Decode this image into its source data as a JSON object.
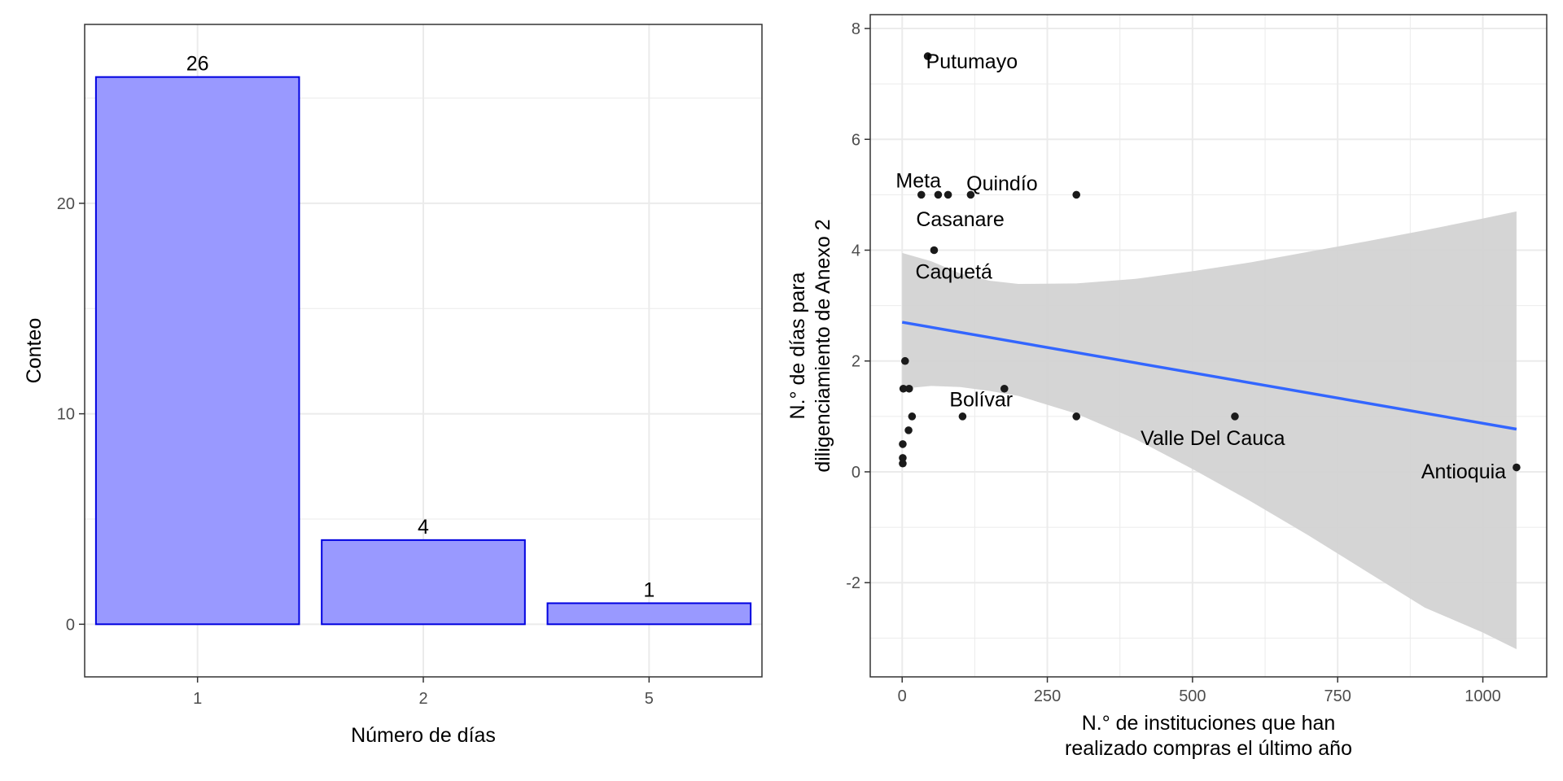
{
  "colors": {
    "bar_fill": "#9999ff",
    "bar_stroke": "#0000e0",
    "grid": "#ebebeb",
    "panel_border": "#333333",
    "point": "#1a1a1a",
    "trend_line": "#3366ff",
    "ribbon": "#d3d3d3"
  },
  "chart_data": [
    {
      "type": "bar",
      "title": "",
      "xlabel": "Número de días",
      "ylabel": "Conteo",
      "categories": [
        "1",
        "2",
        "5"
      ],
      "values": [
        26,
        4,
        1
      ],
      "data_labels": [
        "26",
        "4",
        "1"
      ],
      "ylim": [
        -2.5,
        28.5
      ],
      "yticks": [
        0,
        10,
        20
      ],
      "ytick_labels": [
        "0",
        "10",
        "20"
      ],
      "grid": true
    },
    {
      "type": "scatter",
      "title": "",
      "xlabel_lines": [
        "N.° de instituciones que han",
        "realizado compras el último año"
      ],
      "ylabel_lines": [
        "N.° de días para",
        "diligenciamiento de Anexo 2"
      ],
      "xlim": [
        -55,
        1110
      ],
      "ylim": [
        -3.7,
        8.25
      ],
      "xticks": [
        0,
        250,
        500,
        750,
        1000
      ],
      "xtick_labels": [
        "0",
        "250",
        "500",
        "750",
        "1000"
      ],
      "yticks": [
        -2,
        0,
        2,
        4,
        6,
        8
      ],
      "ytick_labels": [
        "-2",
        "0",
        "2",
        "4",
        "6",
        "8"
      ],
      "grid": true,
      "points": [
        {
          "x": 44,
          "y": 7.5
        },
        {
          "x": 33,
          "y": 5
        },
        {
          "x": 62,
          "y": 5
        },
        {
          "x": 79,
          "y": 5
        },
        {
          "x": 118,
          "y": 5
        },
        {
          "x": 300,
          "y": 5
        },
        {
          "x": 55,
          "y": 4
        },
        {
          "x": 5,
          "y": 2
        },
        {
          "x": 2,
          "y": 1.5
        },
        {
          "x": 12,
          "y": 1.5
        },
        {
          "x": 176,
          "y": 1.5
        },
        {
          "x": 17,
          "y": 1
        },
        {
          "x": 104,
          "y": 1
        },
        {
          "x": 300,
          "y": 1
        },
        {
          "x": 573,
          "y": 1
        },
        {
          "x": 11,
          "y": 0.75
        },
        {
          "x": 1,
          "y": 0.5
        },
        {
          "x": 1,
          "y": 0.25
        },
        {
          "x": 1,
          "y": 0.15
        },
        {
          "x": 1058,
          "y": 0.08
        }
      ],
      "annotations": [
        {
          "text": "Putumayo",
          "x": 120,
          "y": 7.4,
          "anchor": "middle"
        },
        {
          "text": "Meta",
          "x": 28,
          "y": 5.25,
          "anchor": "middle"
        },
        {
          "text": "Quindío",
          "x": 172,
          "y": 5.2,
          "anchor": "middle"
        },
        {
          "text": "Casanare",
          "x": 100,
          "y": 4.55,
          "anchor": "middle"
        },
        {
          "text": "Caquetá",
          "x": 89,
          "y": 3.6,
          "anchor": "middle"
        },
        {
          "text": "Bolívar",
          "x": 136,
          "y": 1.3,
          "anchor": "middle"
        },
        {
          "text": "Valle Del Cauca",
          "x": 535,
          "y": 0.6,
          "anchor": "middle"
        },
        {
          "text": "Antioquia",
          "x": 1040,
          "y": 0.0,
          "anchor": "end"
        }
      ],
      "trend": {
        "x": [
          0,
          1058
        ],
        "y": [
          2.7,
          0.77
        ]
      },
      "confidence_band": {
        "x": [
          0,
          50,
          100,
          150,
          200,
          300,
          400,
          500,
          600,
          700,
          800,
          900,
          1000,
          1058
        ],
        "upper": [
          3.95,
          3.8,
          3.58,
          3.45,
          3.39,
          3.4,
          3.48,
          3.62,
          3.78,
          3.97,
          4.16,
          4.36,
          4.57,
          4.7
        ],
        "lower": [
          1.5,
          1.55,
          1.53,
          1.46,
          1.37,
          1.05,
          0.6,
          0.05,
          -0.53,
          -1.15,
          -1.8,
          -2.45,
          -2.9,
          -3.2
        ]
      }
    }
  ]
}
